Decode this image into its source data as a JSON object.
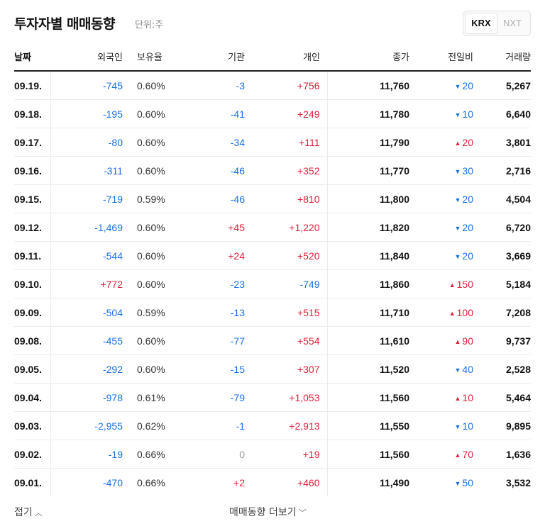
{
  "header": {
    "title": "투자자별 매매동향",
    "unit": "단위:주",
    "tabs": [
      {
        "label": "KRX",
        "active": true
      },
      {
        "label": "NXT",
        "active": false
      }
    ]
  },
  "columns": [
    "날짜",
    "외국인",
    "보유율",
    "기관",
    "개인",
    "종가",
    "전일비",
    "거래량"
  ],
  "colors": {
    "up": "#e0203b",
    "down": "#1a6fe6",
    "neutral": "#999999"
  },
  "rows": [
    {
      "date": "09.19.",
      "foreign": "-745",
      "hold": "0.60%",
      "inst": "-3",
      "indiv": "+756",
      "close": "11,760",
      "dir": "down",
      "chg": "20",
      "vol": "5,267"
    },
    {
      "date": "09.18.",
      "foreign": "-195",
      "hold": "0.60%",
      "inst": "-41",
      "indiv": "+249",
      "close": "11,780",
      "dir": "down",
      "chg": "10",
      "vol": "6,640"
    },
    {
      "date": "09.17.",
      "foreign": "-80",
      "hold": "0.60%",
      "inst": "-34",
      "indiv": "+111",
      "close": "11,790",
      "dir": "up",
      "chg": "20",
      "vol": "3,801"
    },
    {
      "date": "09.16.",
      "foreign": "-311",
      "hold": "0.60%",
      "inst": "-46",
      "indiv": "+352",
      "close": "11,770",
      "dir": "down",
      "chg": "30",
      "vol": "2,716"
    },
    {
      "date": "09.15.",
      "foreign": "-719",
      "hold": "0.59%",
      "inst": "-46",
      "indiv": "+810",
      "close": "11,800",
      "dir": "down",
      "chg": "20",
      "vol": "4,504"
    },
    {
      "date": "09.12.",
      "foreign": "-1,469",
      "hold": "0.60%",
      "inst": "+45",
      "indiv": "+1,220",
      "close": "11,820",
      "dir": "down",
      "chg": "20",
      "vol": "6,720"
    },
    {
      "date": "09.11.",
      "foreign": "-544",
      "hold": "0.60%",
      "inst": "+24",
      "indiv": "+520",
      "close": "11,840",
      "dir": "down",
      "chg": "20",
      "vol": "3,669"
    },
    {
      "date": "09.10.",
      "foreign": "+772",
      "hold": "0.60%",
      "inst": "-23",
      "indiv": "-749",
      "close": "11,860",
      "dir": "up",
      "chg": "150",
      "vol": "5,184"
    },
    {
      "date": "09.09.",
      "foreign": "-504",
      "hold": "0.59%",
      "inst": "-13",
      "indiv": "+515",
      "close": "11,710",
      "dir": "up",
      "chg": "100",
      "vol": "7,208"
    },
    {
      "date": "09.08.",
      "foreign": "-455",
      "hold": "0.60%",
      "inst": "-77",
      "indiv": "+554",
      "close": "11,610",
      "dir": "up",
      "chg": "90",
      "vol": "9,737"
    },
    {
      "date": "09.05.",
      "foreign": "-292",
      "hold": "0.60%",
      "inst": "-15",
      "indiv": "+307",
      "close": "11,520",
      "dir": "down",
      "chg": "40",
      "vol": "2,528"
    },
    {
      "date": "09.04.",
      "foreign": "-978",
      "hold": "0.61%",
      "inst": "-79",
      "indiv": "+1,053",
      "close": "11,560",
      "dir": "up",
      "chg": "10",
      "vol": "5,464"
    },
    {
      "date": "09.03.",
      "foreign": "-2,955",
      "hold": "0.62%",
      "inst": "-1",
      "indiv": "+2,913",
      "close": "11,550",
      "dir": "down",
      "chg": "10",
      "vol": "9,895"
    },
    {
      "date": "09.02.",
      "foreign": "-19",
      "hold": "0.66%",
      "inst": "0",
      "indiv": "+19",
      "close": "11,560",
      "dir": "up",
      "chg": "70",
      "vol": "1,636"
    },
    {
      "date": "09.01.",
      "foreign": "-470",
      "hold": "0.66%",
      "inst": "+2",
      "indiv": "+460",
      "close": "11,490",
      "dir": "down",
      "chg": "50",
      "vol": "3,532"
    }
  ],
  "footer": {
    "fold_label": "접기",
    "more_label": "매매동향 더보기"
  }
}
